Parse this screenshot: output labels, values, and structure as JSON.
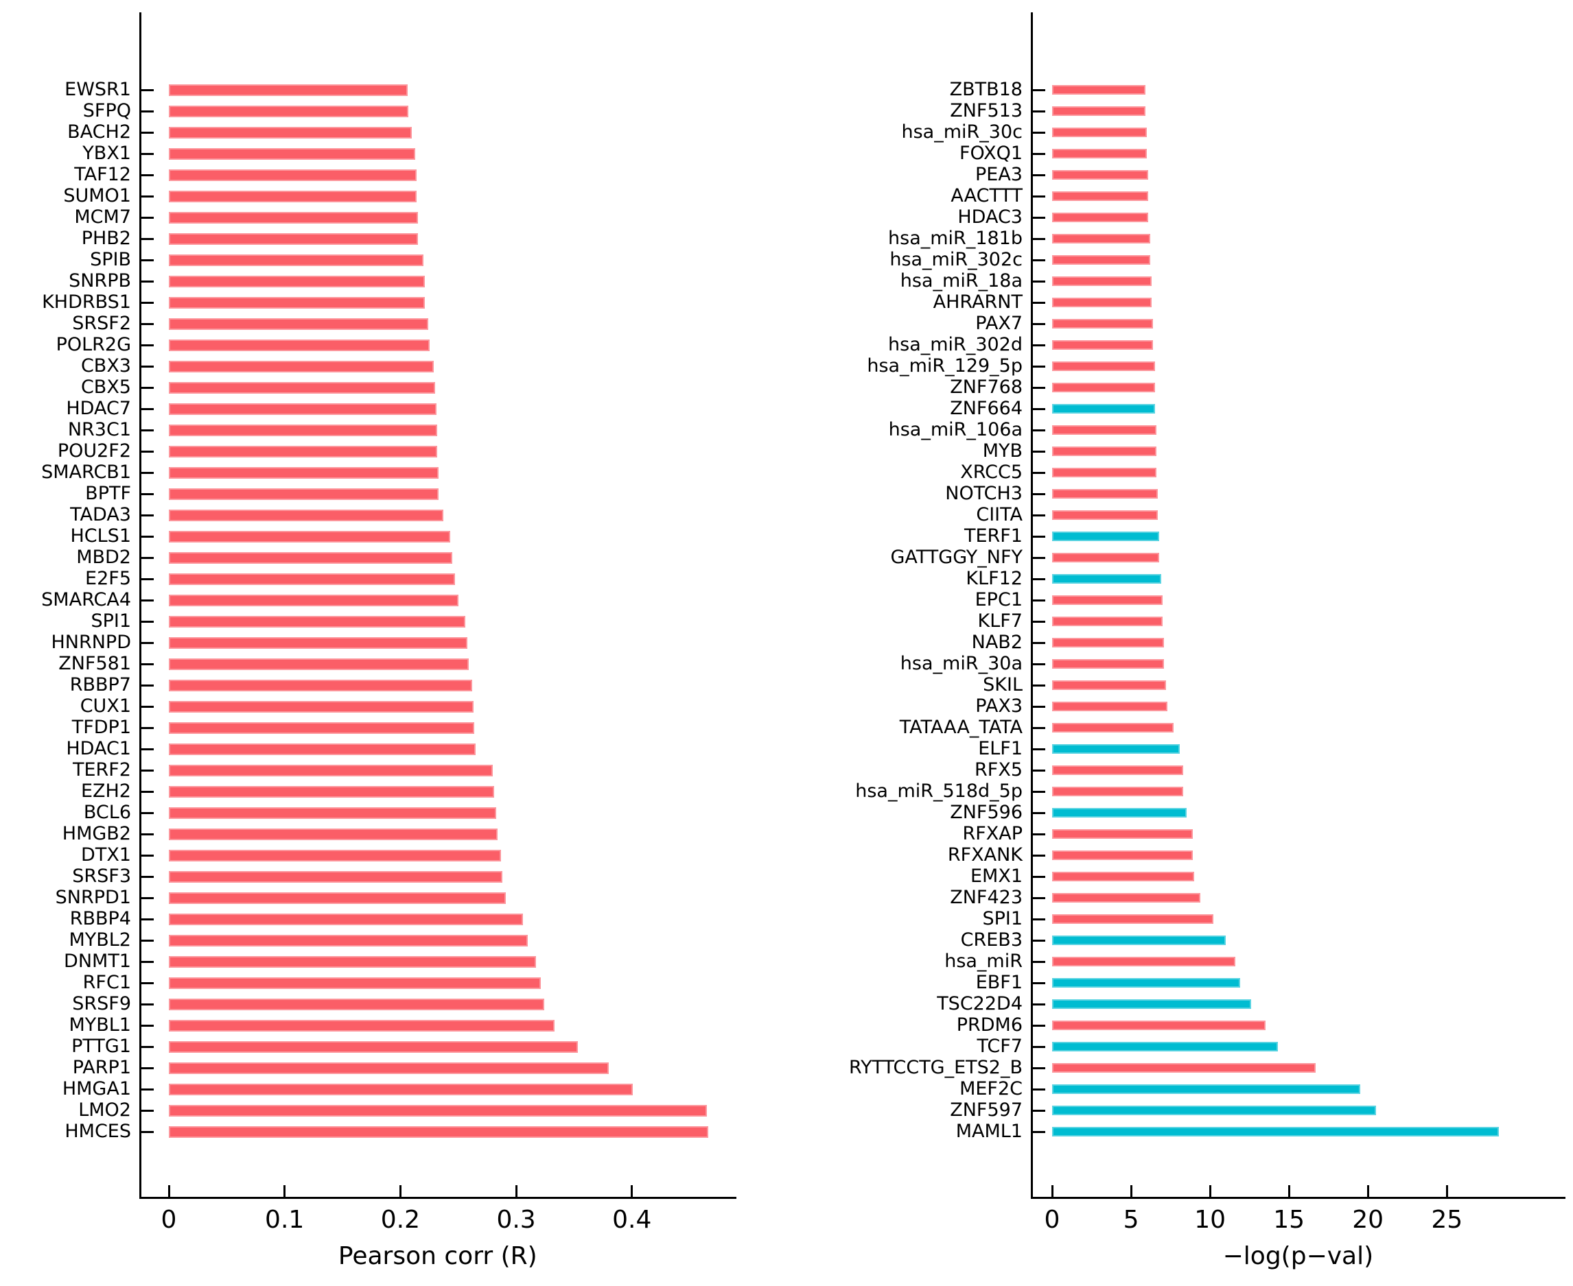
{
  "colors": {
    "bar_red": "#FB5E67",
    "bar_cyan": "#00BCD1",
    "axis_black": "#000000",
    "background": "#FFFFFF"
  },
  "chart_data": [
    {
      "type": "bar",
      "orientation": "horizontal",
      "title": "",
      "xlabel": "Pearson corr (R)",
      "ylabel": "",
      "grid": false,
      "legend": null,
      "xlim": [
        0,
        0.49
      ],
      "xticks": {
        "values": [
          0,
          0.1,
          0.2,
          0.3,
          0.4
        ],
        "labels": [
          "0",
          "0.1",
          "0.2",
          "0.3",
          "0.4"
        ]
      },
      "bar_color_default": "#FB5E67",
      "categories": [
        "EWSR1",
        "SFPQ",
        "BACH2",
        "YBX1",
        "TAF12",
        "SUMO1",
        "MCM7",
        "PHB2",
        "SPIB",
        "SNRPB",
        "KHDRBS1",
        "SRSF2",
        "POLR2G",
        "CBX3",
        "CBX5",
        "HDAC7",
        "NR3C1",
        "POU2F2",
        "SMARCB1",
        "BPTF",
        "TADA3",
        "HCLS1",
        "MBD2",
        "E2F5",
        "SMARCA4",
        "SPI1",
        "HNRNPD",
        "ZNF581",
        "RBBP7",
        "CUX1",
        "TFDP1",
        "HDAC1",
        "TERF2",
        "EZH2",
        "BCL6",
        "HMGB2",
        "DTX1",
        "SRSF3",
        "SNRPD1",
        "RBBP4",
        "MYBL2",
        "DNMT1",
        "RFC1",
        "SRSF9",
        "MYBL1",
        "PTTG1",
        "PARP1",
        "HMGA1",
        "LMO2",
        "HMCES"
      ],
      "values": [
        0.206,
        0.207,
        0.21,
        0.213,
        0.214,
        0.214,
        0.215,
        0.215,
        0.22,
        0.221,
        0.221,
        0.224,
        0.225,
        0.229,
        0.23,
        0.231,
        0.232,
        0.232,
        0.233,
        0.233,
        0.237,
        0.243,
        0.245,
        0.247,
        0.25,
        0.256,
        0.258,
        0.259,
        0.262,
        0.263,
        0.264,
        0.265,
        0.28,
        0.281,
        0.283,
        0.284,
        0.287,
        0.288,
        0.291,
        0.306,
        0.31,
        0.317,
        0.321,
        0.324,
        0.333,
        0.353,
        0.38,
        0.401,
        0.465,
        0.466
      ]
    },
    {
      "type": "bar",
      "orientation": "horizontal",
      "title": "",
      "xlabel": "−log(p−val)",
      "ylabel": "",
      "grid": false,
      "legend": null,
      "xlim": [
        0,
        32.5
      ],
      "xticks": {
        "values": [
          0,
          5,
          10,
          15,
          20,
          25
        ],
        "labels": [
          "0",
          "5",
          "10",
          "15",
          "20",
          "25"
        ]
      },
      "bar_color_default": "#FB5E67",
      "categories": [
        "ZBTB18",
        "ZNF513",
        "hsa_miR_30c",
        "FOXQ1",
        "PEA3",
        "AACTTT",
        "HDAC3",
        "hsa_miR_181b",
        "hsa_miR_302c",
        "hsa_miR_18a",
        "AHRARNT",
        "PAX7",
        "hsa_miR_302d",
        "hsa_miR_129_5p",
        "ZNF768",
        "ZNF664",
        "hsa_miR_106a",
        "MYB",
        "XRCC5",
        "NOTCH3",
        "CIITA",
        "TERF1",
        "GATTGGY_NFY",
        "KLF12",
        "EPC1",
        "KLF7",
        "NAB2",
        "hsa_miR_30a",
        "SKIL",
        "PAX3",
        "TATAAA_TATA",
        "ELF1",
        "RFX5",
        "hsa_miR_518d_5p",
        "ZNF596",
        "RFXAP",
        "RFXANK",
        "EMX1",
        "ZNF423",
        "SPI1",
        "CREB3",
        "hsa_miR",
        "EBF1",
        "TSC22D4",
        "PRDM6",
        "TCF7",
        "RYTTCCTG_ETS2_B",
        "MEF2C",
        "ZNF597",
        "MAML1"
      ],
      "values": [
        5.9,
        5.9,
        6.0,
        6.0,
        6.1,
        6.1,
        6.1,
        6.2,
        6.2,
        6.3,
        6.3,
        6.4,
        6.4,
        6.5,
        6.5,
        6.5,
        6.6,
        6.6,
        6.6,
        6.7,
        6.7,
        6.8,
        6.8,
        6.9,
        7.0,
        7.0,
        7.1,
        7.1,
        7.2,
        7.3,
        7.7,
        8.1,
        8.3,
        8.3,
        8.5,
        8.9,
        8.9,
        9.0,
        9.4,
        10.2,
        11.0,
        11.6,
        11.9,
        12.6,
        13.5,
        14.3,
        16.7,
        19.5,
        20.5,
        28.3
      ],
      "bar_colors": [
        "#FB5E67",
        "#FB5E67",
        "#FB5E67",
        "#FB5E67",
        "#FB5E67",
        "#FB5E67",
        "#FB5E67",
        "#FB5E67",
        "#FB5E67",
        "#FB5E67",
        "#FB5E67",
        "#FB5E67",
        "#FB5E67",
        "#FB5E67",
        "#FB5E67",
        "#00BCD1",
        "#FB5E67",
        "#FB5E67",
        "#FB5E67",
        "#FB5E67",
        "#FB5E67",
        "#00BCD1",
        "#FB5E67",
        "#00BCD1",
        "#FB5E67",
        "#FB5E67",
        "#FB5E67",
        "#FB5E67",
        "#FB5E67",
        "#FB5E67",
        "#FB5E67",
        "#00BCD1",
        "#FB5E67",
        "#FB5E67",
        "#00BCD1",
        "#FB5E67",
        "#FB5E67",
        "#FB5E67",
        "#FB5E67",
        "#FB5E67",
        "#00BCD1",
        "#FB5E67",
        "#00BCD1",
        "#00BCD1",
        "#FB5E67",
        "#00BCD1",
        "#FB5E67",
        "#00BCD1",
        "#00BCD1",
        "#00BCD1"
      ]
    }
  ]
}
